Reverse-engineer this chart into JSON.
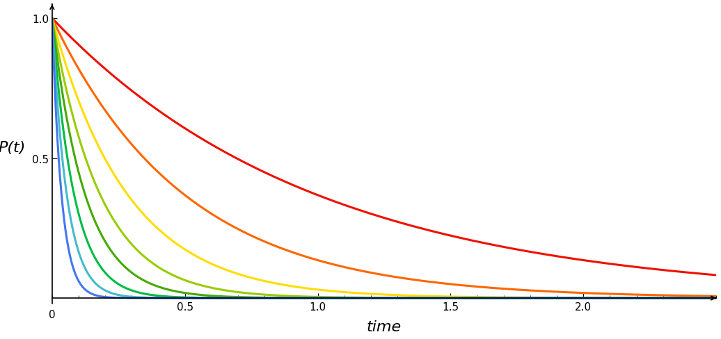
{
  "title": "",
  "xlabel": "time",
  "ylabel": "P(t)",
  "xlim": [
    0,
    2.5
  ],
  "ylim": [
    0,
    1.05
  ],
  "xticks": [
    0.5,
    1,
    1.5,
    2
  ],
  "yticks": [
    0.5,
    1
  ],
  "curves": [
    {
      "lambda": 1.0,
      "color": "#EE1100"
    },
    {
      "lambda": 2.0,
      "color": "#FF6600"
    },
    {
      "lambda": 3.5,
      "color": "#FFDD00"
    },
    {
      "lambda": 5.5,
      "color": "#99CC00"
    },
    {
      "lambda": 8.0,
      "color": "#44AA00"
    },
    {
      "lambda": 12.0,
      "color": "#00BB44"
    },
    {
      "lambda": 18.0,
      "color": "#44BBCC"
    },
    {
      "lambda": 28.0,
      "color": "#4477EE"
    }
  ],
  "background_color": "#FFFFFF",
  "linewidth": 2.2,
  "xlabel_fontsize": 16,
  "ylabel_fontsize": 16,
  "tick_fontsize": 11
}
